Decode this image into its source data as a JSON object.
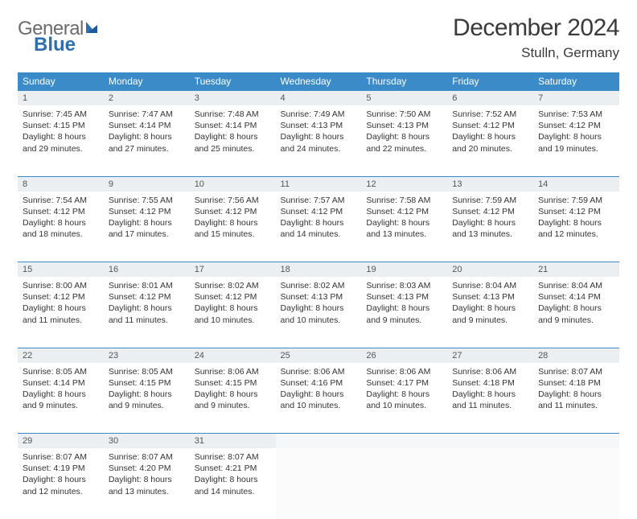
{
  "logo": {
    "word1": "General",
    "word2": "Blue"
  },
  "title": "December 2024",
  "location": "Stulln, Germany",
  "colors": {
    "header_bg": "#3b8bc9",
    "header_text": "#ffffff",
    "daynum_bg": "#eceff1",
    "row_divider": "#3b8bc9",
    "logo_gray": "#6b6b6b",
    "logo_blue": "#2f6fb0",
    "body_text": "#333333",
    "page_bg": "#ffffff"
  },
  "day_headers": [
    "Sunday",
    "Monday",
    "Tuesday",
    "Wednesday",
    "Thursday",
    "Friday",
    "Saturday"
  ],
  "weeks": [
    [
      {
        "num": "1",
        "sunrise": "Sunrise: 7:45 AM",
        "sunset": "Sunset: 4:15 PM",
        "daylight": "Daylight: 8 hours and 29 minutes."
      },
      {
        "num": "2",
        "sunrise": "Sunrise: 7:47 AM",
        "sunset": "Sunset: 4:14 PM",
        "daylight": "Daylight: 8 hours and 27 minutes."
      },
      {
        "num": "3",
        "sunrise": "Sunrise: 7:48 AM",
        "sunset": "Sunset: 4:14 PM",
        "daylight": "Daylight: 8 hours and 25 minutes."
      },
      {
        "num": "4",
        "sunrise": "Sunrise: 7:49 AM",
        "sunset": "Sunset: 4:13 PM",
        "daylight": "Daylight: 8 hours and 24 minutes."
      },
      {
        "num": "5",
        "sunrise": "Sunrise: 7:50 AM",
        "sunset": "Sunset: 4:13 PM",
        "daylight": "Daylight: 8 hours and 22 minutes."
      },
      {
        "num": "6",
        "sunrise": "Sunrise: 7:52 AM",
        "sunset": "Sunset: 4:12 PM",
        "daylight": "Daylight: 8 hours and 20 minutes."
      },
      {
        "num": "7",
        "sunrise": "Sunrise: 7:53 AM",
        "sunset": "Sunset: 4:12 PM",
        "daylight": "Daylight: 8 hours and 19 minutes."
      }
    ],
    [
      {
        "num": "8",
        "sunrise": "Sunrise: 7:54 AM",
        "sunset": "Sunset: 4:12 PM",
        "daylight": "Daylight: 8 hours and 18 minutes."
      },
      {
        "num": "9",
        "sunrise": "Sunrise: 7:55 AM",
        "sunset": "Sunset: 4:12 PM",
        "daylight": "Daylight: 8 hours and 17 minutes."
      },
      {
        "num": "10",
        "sunrise": "Sunrise: 7:56 AM",
        "sunset": "Sunset: 4:12 PM",
        "daylight": "Daylight: 8 hours and 15 minutes."
      },
      {
        "num": "11",
        "sunrise": "Sunrise: 7:57 AM",
        "sunset": "Sunset: 4:12 PM",
        "daylight": "Daylight: 8 hours and 14 minutes."
      },
      {
        "num": "12",
        "sunrise": "Sunrise: 7:58 AM",
        "sunset": "Sunset: 4:12 PM",
        "daylight": "Daylight: 8 hours and 13 minutes."
      },
      {
        "num": "13",
        "sunrise": "Sunrise: 7:59 AM",
        "sunset": "Sunset: 4:12 PM",
        "daylight": "Daylight: 8 hours and 13 minutes."
      },
      {
        "num": "14",
        "sunrise": "Sunrise: 7:59 AM",
        "sunset": "Sunset: 4:12 PM",
        "daylight": "Daylight: 8 hours and 12 minutes."
      }
    ],
    [
      {
        "num": "15",
        "sunrise": "Sunrise: 8:00 AM",
        "sunset": "Sunset: 4:12 PM",
        "daylight": "Daylight: 8 hours and 11 minutes."
      },
      {
        "num": "16",
        "sunrise": "Sunrise: 8:01 AM",
        "sunset": "Sunset: 4:12 PM",
        "daylight": "Daylight: 8 hours and 11 minutes."
      },
      {
        "num": "17",
        "sunrise": "Sunrise: 8:02 AM",
        "sunset": "Sunset: 4:12 PM",
        "daylight": "Daylight: 8 hours and 10 minutes."
      },
      {
        "num": "18",
        "sunrise": "Sunrise: 8:02 AM",
        "sunset": "Sunset: 4:13 PM",
        "daylight": "Daylight: 8 hours and 10 minutes."
      },
      {
        "num": "19",
        "sunrise": "Sunrise: 8:03 AM",
        "sunset": "Sunset: 4:13 PM",
        "daylight": "Daylight: 8 hours and 9 minutes."
      },
      {
        "num": "20",
        "sunrise": "Sunrise: 8:04 AM",
        "sunset": "Sunset: 4:13 PM",
        "daylight": "Daylight: 8 hours and 9 minutes."
      },
      {
        "num": "21",
        "sunrise": "Sunrise: 8:04 AM",
        "sunset": "Sunset: 4:14 PM",
        "daylight": "Daylight: 8 hours and 9 minutes."
      }
    ],
    [
      {
        "num": "22",
        "sunrise": "Sunrise: 8:05 AM",
        "sunset": "Sunset: 4:14 PM",
        "daylight": "Daylight: 8 hours and 9 minutes."
      },
      {
        "num": "23",
        "sunrise": "Sunrise: 8:05 AM",
        "sunset": "Sunset: 4:15 PM",
        "daylight": "Daylight: 8 hours and 9 minutes."
      },
      {
        "num": "24",
        "sunrise": "Sunrise: 8:06 AM",
        "sunset": "Sunset: 4:15 PM",
        "daylight": "Daylight: 8 hours and 9 minutes."
      },
      {
        "num": "25",
        "sunrise": "Sunrise: 8:06 AM",
        "sunset": "Sunset: 4:16 PM",
        "daylight": "Daylight: 8 hours and 10 minutes."
      },
      {
        "num": "26",
        "sunrise": "Sunrise: 8:06 AM",
        "sunset": "Sunset: 4:17 PM",
        "daylight": "Daylight: 8 hours and 10 minutes."
      },
      {
        "num": "27",
        "sunrise": "Sunrise: 8:06 AM",
        "sunset": "Sunset: 4:18 PM",
        "daylight": "Daylight: 8 hours and 11 minutes."
      },
      {
        "num": "28",
        "sunrise": "Sunrise: 8:07 AM",
        "sunset": "Sunset: 4:18 PM",
        "daylight": "Daylight: 8 hours and 11 minutes."
      }
    ],
    [
      {
        "num": "29",
        "sunrise": "Sunrise: 8:07 AM",
        "sunset": "Sunset: 4:19 PM",
        "daylight": "Daylight: 8 hours and 12 minutes."
      },
      {
        "num": "30",
        "sunrise": "Sunrise: 8:07 AM",
        "sunset": "Sunset: 4:20 PM",
        "daylight": "Daylight: 8 hours and 13 minutes."
      },
      {
        "num": "31",
        "sunrise": "Sunrise: 8:07 AM",
        "sunset": "Sunset: 4:21 PM",
        "daylight": "Daylight: 8 hours and 14 minutes."
      },
      null,
      null,
      null,
      null
    ]
  ]
}
